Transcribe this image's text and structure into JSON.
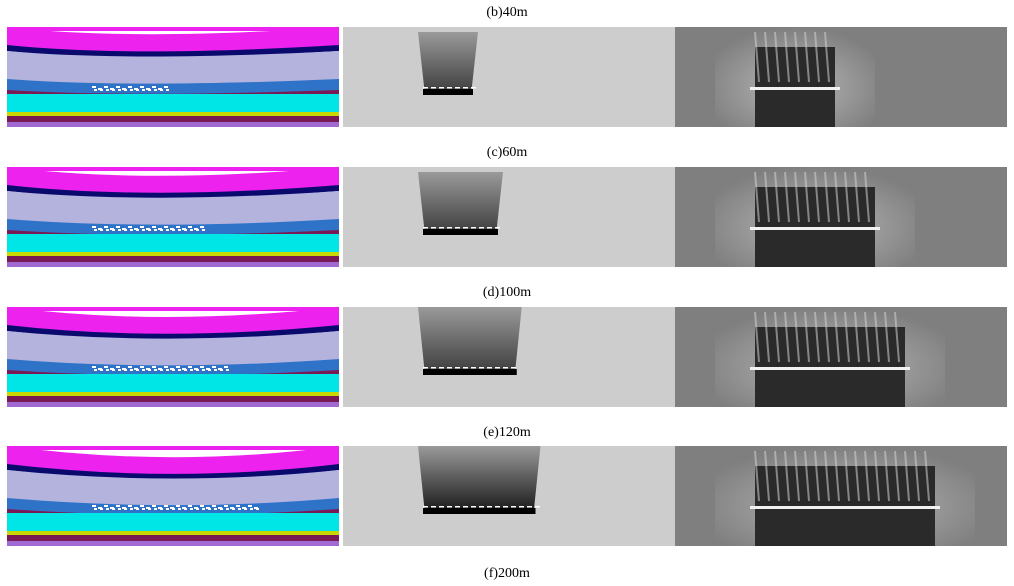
{
  "captions": [
    "(b)40m",
    "(c)60m",
    "(d)100m",
    "(e)120m",
    "(f)200m"
  ],
  "colors": {
    "magenta": "#ee22ee",
    "navy": "#0a0a6e",
    "lavender": "#b3b3dd",
    "blue": "#2f73c9",
    "maroon": "#7a1a55",
    "cyan": "#00e6e6",
    "yellow": "#c8d800",
    "purple": "#a06ad2",
    "gray_bg": "#cdcdcd",
    "dark_gray": "#7f7f7f"
  },
  "stages": [
    {
      "goaf_extent": 0.4
    },
    {
      "goaf_extent": 0.6
    },
    {
      "goaf_extent": 0.75
    },
    {
      "goaf_extent": 0.9
    }
  ]
}
